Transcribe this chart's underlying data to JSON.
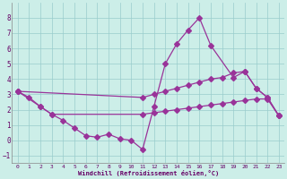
{
  "line1_x": [
    0,
    1,
    2,
    3,
    4,
    5,
    6,
    7,
    8,
    9,
    10,
    11,
    12,
    13,
    14,
    15,
    16,
    17,
    19,
    20,
    21,
    22,
    23
  ],
  "line1_y": [
    3.2,
    2.8,
    2.2,
    1.7,
    1.3,
    0.8,
    0.3,
    0.2,
    0.4,
    0.1,
    0.0,
    -0.6,
    2.2,
    5.0,
    6.3,
    7.2,
    8.0,
    6.2,
    4.1,
    4.5,
    3.4,
    2.8,
    1.6
  ],
  "line2_x": [
    0,
    2,
    3,
    11,
    12,
    13,
    14,
    15,
    16,
    17,
    18,
    19,
    20,
    21,
    22,
    23
  ],
  "line2_y": [
    3.2,
    2.2,
    1.7,
    1.7,
    1.8,
    1.9,
    2.0,
    2.1,
    2.2,
    2.3,
    2.4,
    2.5,
    2.6,
    2.7,
    2.7,
    1.6
  ],
  "line3_x": [
    0,
    11,
    12,
    13,
    14,
    15,
    16,
    17,
    18,
    19,
    20,
    21,
    22,
    23
  ],
  "line3_y": [
    3.2,
    2.8,
    3.0,
    3.2,
    3.4,
    3.6,
    3.8,
    4.0,
    4.1,
    4.4,
    4.5,
    3.4,
    2.8,
    1.6
  ],
  "color": "#993399",
  "bg_color": "#cceee8",
  "grid_color": "#99cccc",
  "xlim": [
    -0.5,
    23.5
  ],
  "ylim": [
    -1.5,
    9
  ],
  "xlabel": "Windchill (Refroidissement éolien,°C)",
  "yticks": [
    -1,
    0,
    1,
    2,
    3,
    4,
    5,
    6,
    7,
    8
  ],
  "xticks": [
    0,
    1,
    2,
    3,
    4,
    5,
    6,
    7,
    8,
    9,
    10,
    11,
    12,
    13,
    14,
    15,
    16,
    17,
    18,
    19,
    20,
    21,
    22,
    23
  ]
}
